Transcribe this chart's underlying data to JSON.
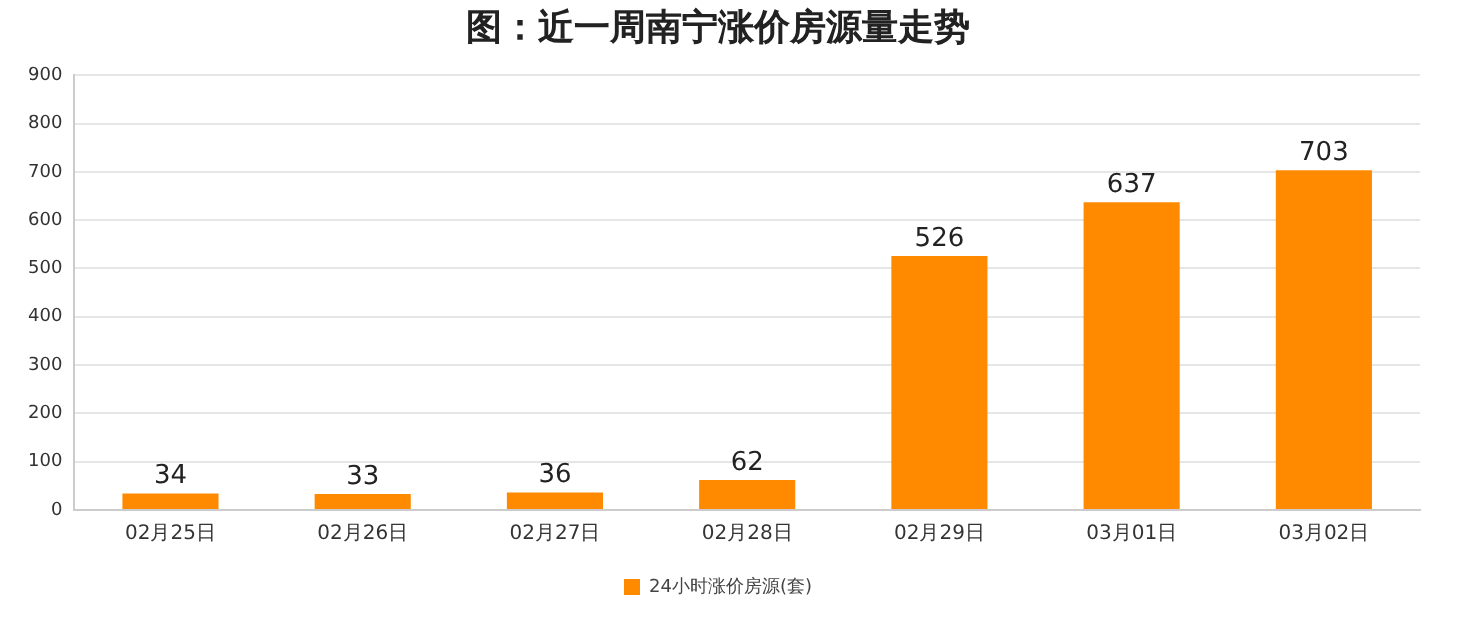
{
  "chart_data": {
    "type": "bar",
    "title": "图：近一周南宁涨价房源量走势",
    "categories": [
      "02月25日",
      "02月26日",
      "02月27日",
      "02月28日",
      "02月29日",
      "03月01日",
      "03月02日"
    ],
    "series": [
      {
        "name": "24小时涨价房源(套)",
        "color": "#ff8a00",
        "values": [
          34,
          33,
          36,
          62,
          526,
          637,
          703
        ]
      }
    ],
    "ylim": [
      0,
      900
    ],
    "yticks": [
      0,
      100,
      200,
      300,
      400,
      500,
      600,
      700,
      800,
      900
    ],
    "grid": "y",
    "legend": "bottom",
    "data_labels": true
  }
}
